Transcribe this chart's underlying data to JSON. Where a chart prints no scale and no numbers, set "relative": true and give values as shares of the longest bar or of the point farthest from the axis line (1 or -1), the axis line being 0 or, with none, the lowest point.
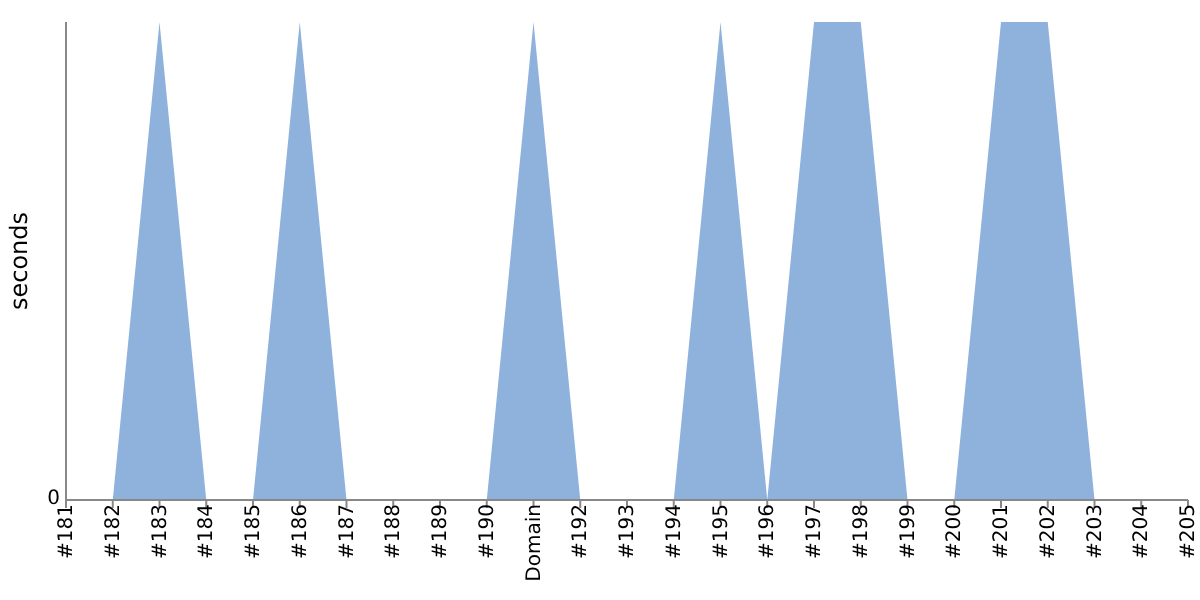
{
  "chart_data": {
    "type": "area",
    "ylabel": "seconds",
    "relative": true,
    "annotations": [
      "0"
    ],
    "grid": false,
    "legend": false,
    "categories": [
      "#181",
      "#182",
      "#183",
      "#184",
      "#185",
      "#186",
      "#187",
      "#188",
      "#189",
      "#190",
      "Domain",
      "#192",
      "#193",
      "#194",
      "#195",
      "#196",
      "#197",
      "#198",
      "#199",
      "#200",
      "#201",
      "#202",
      "#203",
      "#204",
      "#205"
    ],
    "series": [
      {
        "color": "#8fb2dc",
        "values": [
          0,
          0,
          1,
          0,
          0,
          1,
          0,
          0,
          0,
          0,
          1,
          0,
          0,
          0,
          1,
          0,
          1,
          1,
          0,
          0,
          1,
          1,
          0,
          0,
          0
        ]
      }
    ]
  }
}
